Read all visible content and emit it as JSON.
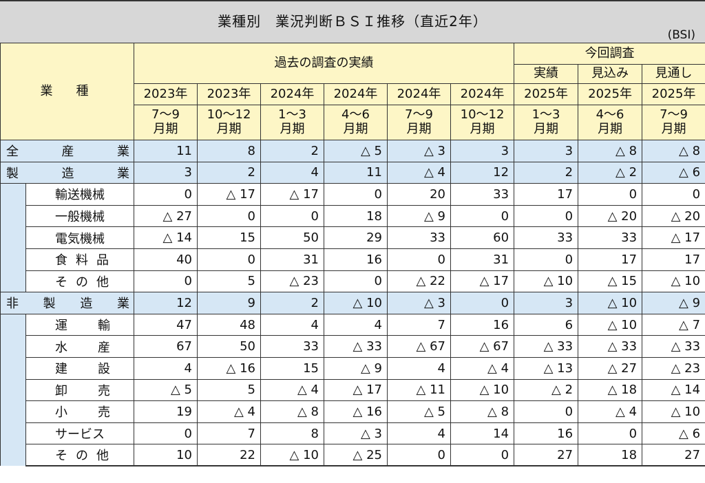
{
  "title": "業種別　業況判断ＢＳＩ推移（直近2年）",
  "unit": "(BSI)",
  "header": {
    "industry_label": "業　種",
    "past_label": "過去の調査の実績",
    "current_label": "今回調査",
    "current_sub": [
      "実績",
      "見込み",
      "見通し"
    ],
    "years": [
      "2023年",
      "2023年",
      "2024年",
      "2024年",
      "2024年",
      "2024年",
      "2025年",
      "2025年",
      "2025年"
    ],
    "periods_line1": [
      "7～9",
      "10～12",
      "1～3",
      "4～6",
      "7～9",
      "10～12",
      "1～3",
      "4～6",
      "7～9"
    ],
    "periods_line2": [
      "月期",
      "月期",
      "月期",
      "月期",
      "月期",
      "月期",
      "月期",
      "月期",
      "月期"
    ]
  },
  "rows": [
    {
      "name": "全　産　業",
      "type": "total",
      "values": [
        "11",
        "8",
        "2",
        "△ 5",
        "△ 3",
        "3",
        "3",
        "△ 8",
        "△ 8"
      ]
    },
    {
      "name": "製　造　業",
      "type": "group",
      "values": [
        "3",
        "2",
        "4",
        "11",
        "△ 4",
        "12",
        "2",
        "△ 2",
        "△ 6"
      ]
    },
    {
      "name": "輸送機械",
      "type": "sub",
      "values": [
        "0",
        "△ 17",
        "△ 17",
        "0",
        "20",
        "33",
        "17",
        "0",
        "0"
      ]
    },
    {
      "name": "一般機械",
      "type": "sub",
      "values": [
        "△ 27",
        "0",
        "0",
        "18",
        "△ 9",
        "0",
        "0",
        "△ 20",
        "△ 20"
      ]
    },
    {
      "name": "電気機械",
      "type": "sub",
      "values": [
        "△ 14",
        "15",
        "50",
        "29",
        "33",
        "60",
        "33",
        "33",
        "△ 17"
      ]
    },
    {
      "name": "食料品",
      "type": "sub",
      "values": [
        "40",
        "0",
        "31",
        "16",
        "0",
        "31",
        "0",
        "17",
        "17"
      ]
    },
    {
      "name": "その他",
      "type": "sub",
      "values": [
        "0",
        "5",
        "△ 23",
        "0",
        "△ 22",
        "△ 17",
        "△ 10",
        "△ 15",
        "△ 10"
      ]
    },
    {
      "name": "非　製　造　業",
      "type": "group",
      "values": [
        "12",
        "9",
        "2",
        "△ 10",
        "△ 3",
        "0",
        "3",
        "△ 10",
        "△ 9"
      ]
    },
    {
      "name": "運輸",
      "type": "sub",
      "values": [
        "47",
        "48",
        "4",
        "4",
        "7",
        "16",
        "6",
        "△ 10",
        "△ 7"
      ]
    },
    {
      "name": "水産",
      "type": "sub",
      "values": [
        "67",
        "50",
        "33",
        "△ 33",
        "△ 67",
        "△ 67",
        "△ 33",
        "△ 33",
        "△ 33"
      ]
    },
    {
      "name": "建設",
      "type": "sub",
      "values": [
        "4",
        "△ 16",
        "15",
        "△ 9",
        "4",
        "△ 4",
        "△ 13",
        "△ 27",
        "△ 23"
      ]
    },
    {
      "name": "卸売",
      "type": "sub",
      "values": [
        "△ 5",
        "5",
        "△ 4",
        "△ 17",
        "△ 11",
        "△ 10",
        "△ 2",
        "△ 18",
        "△ 14"
      ]
    },
    {
      "name": "小売",
      "type": "sub",
      "values": [
        "19",
        "△ 4",
        "△ 8",
        "△ 16",
        "△ 5",
        "△ 8",
        "0",
        "△ 4",
        "△ 10"
      ]
    },
    {
      "name": "サービス",
      "type": "sub",
      "values": [
        "0",
        "7",
        "8",
        "△ 3",
        "4",
        "14",
        "16",
        "0",
        "△ 6"
      ]
    },
    {
      "name": "その他",
      "type": "sub",
      "values": [
        "10",
        "22",
        "△ 10",
        "△ 25",
        "0",
        "0",
        "27",
        "18",
        "27"
      ]
    }
  ]
}
